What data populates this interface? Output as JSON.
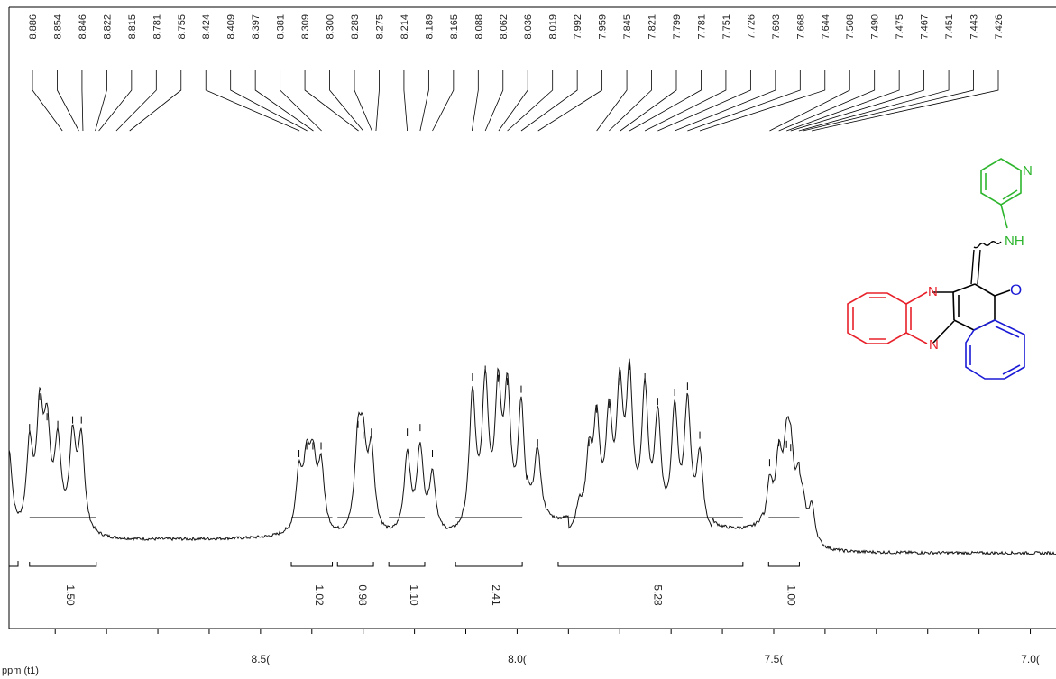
{
  "chart_data": {
    "type": "line",
    "xlabel": "ppm (t1)",
    "ylabel": "",
    "xlim": [
      8.99,
      6.95
    ],
    "x_reversed": true,
    "x_tick_labels": [
      "8.50",
      "8.00",
      "7.50",
      "7.00"
    ],
    "x_tick_values": [
      8.5,
      8.0,
      7.5,
      7.0
    ],
    "x_tick_labels_display": [
      "8.5(",
      "8.0(",
      "7.5(",
      "7.0("
    ],
    "peak_labels": [
      "8.886",
      "8.854",
      "8.846",
      "8.822",
      "8.815",
      "8.781",
      "8.755",
      "8.424",
      "8.409",
      "8.397",
      "8.381",
      "8.309",
      "8.300",
      "8.283",
      "8.275",
      "8.214",
      "8.189",
      "8.165",
      "8.088",
      "8.062",
      "8.036",
      "8.019",
      "7.992",
      "7.959",
      "7.845",
      "7.821",
      "7.799",
      "7.781",
      "7.751",
      "7.726",
      "7.693",
      "7.668",
      "7.644",
      "7.508",
      "7.490",
      "7.475",
      "7.467",
      "7.451",
      "7.443",
      "7.426"
    ],
    "integrals": [
      {
        "from": 8.95,
        "to": 8.82,
        "value": "1.50"
      },
      {
        "from": 8.44,
        "to": 8.36,
        "value": "1.02"
      },
      {
        "from": 8.35,
        "to": 8.28,
        "value": "0.98"
      },
      {
        "from": 8.25,
        "to": 8.18,
        "value": "1.10"
      },
      {
        "from": 8.12,
        "to": 7.99,
        "value": "2.41"
      },
      {
        "from": 7.92,
        "to": 7.56,
        "value": "5.28"
      },
      {
        "from": 7.51,
        "to": 7.45,
        "value": "1.00"
      }
    ],
    "spectrum_peaks": [
      [
        8.99,
        0.55
      ],
      [
        8.95,
        0.55
      ],
      [
        8.93,
        0.75
      ],
      [
        8.916,
        0.62
      ],
      [
        8.895,
        0.57
      ],
      [
        8.866,
        0.6
      ],
      [
        8.849,
        0.6
      ],
      [
        8.425,
        0.38
      ],
      [
        8.41,
        0.43
      ],
      [
        8.398,
        0.43
      ],
      [
        8.382,
        0.43
      ],
      [
        8.31,
        0.57
      ],
      [
        8.3,
        0.5
      ],
      [
        8.284,
        0.52
      ],
      [
        8.214,
        0.52
      ],
      [
        8.189,
        0.55
      ],
      [
        8.165,
        0.38
      ],
      [
        8.087,
        0.88
      ],
      [
        8.062,
        0.93
      ],
      [
        8.037,
        0.87
      ],
      [
        8.019,
        0.85
      ],
      [
        7.992,
        0.8
      ],
      [
        7.96,
        0.45
      ],
      [
        7.879,
        0.15
      ],
      [
        7.86,
        0.45
      ],
      [
        7.845,
        0.67
      ],
      [
        7.821,
        0.7
      ],
      [
        7.8,
        0.85
      ],
      [
        7.781,
        0.95
      ],
      [
        7.751,
        0.88
      ],
      [
        7.726,
        0.72
      ],
      [
        7.693,
        0.78
      ],
      [
        7.668,
        0.82
      ],
      [
        7.644,
        0.5
      ],
      [
        7.508,
        0.32
      ],
      [
        7.49,
        0.45
      ],
      [
        7.475,
        0.44
      ],
      [
        7.467,
        0.42
      ],
      [
        7.451,
        0.27
      ],
      [
        7.443,
        0.18
      ],
      [
        7.426,
        0.25
      ]
    ]
  },
  "structure": {
    "atoms": {
      "n_pyridine": "N",
      "nh": "NH",
      "n_top": "N",
      "n_bottom": "N",
      "oxygen": "O"
    },
    "colors": {
      "pyridine": "#2db52d",
      "benzo_left": "#e8202a",
      "benzo_right": "#1a1ad6",
      "backbone": "#000000"
    }
  },
  "colors": {
    "spectrum": "#111111",
    "frame": "#000000",
    "background": "#ffffff"
  }
}
